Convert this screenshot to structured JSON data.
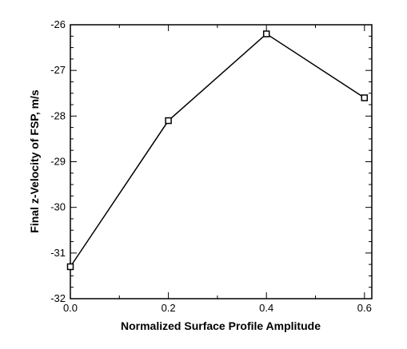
{
  "chart_data": {
    "type": "line",
    "title": "",
    "xlabel": "Normalized Surface Profile Amplitude",
    "ylabel": "Final z-Velocity of FSP, m/s",
    "x": [
      0.0,
      0.2,
      0.4,
      0.6
    ],
    "series": [
      {
        "values": [
          -31.3,
          -28.1,
          -26.2,
          -27.6
        ]
      }
    ],
    "xlim": [
      0.0,
      0.615
    ],
    "ylim": [
      -32,
      -26
    ],
    "x_ticks": [
      0.0,
      0.2,
      0.4,
      0.6
    ],
    "x_tick_labels": [
      "0.0",
      "0.2",
      "0.4",
      "0.6"
    ],
    "y_ticks": [
      -32,
      -31,
      -30,
      -29,
      -28,
      -27,
      -26
    ],
    "y_tick_labels": [
      "-32",
      "-31",
      "-30",
      "-29",
      "-28",
      "-27",
      "-26"
    ],
    "marker": "open-square",
    "line_color": "#000000",
    "grid": false,
    "legend": "none"
  }
}
